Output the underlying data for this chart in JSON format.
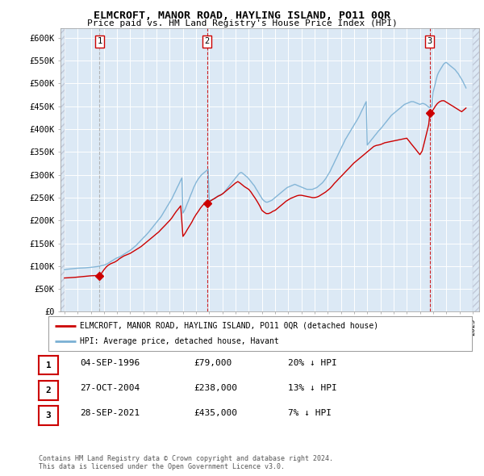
{
  "title": "ELMCROFT, MANOR ROAD, HAYLING ISLAND, PO11 0QR",
  "subtitle": "Price paid vs. HM Land Registry's House Price Index (HPI)",
  "background_color": "#ffffff",
  "plot_bg_color": "#dce9f5",
  "grid_color": "#ffffff",
  "ylim": [
    0,
    620000
  ],
  "yticks": [
    0,
    50000,
    100000,
    150000,
    200000,
    250000,
    300000,
    350000,
    400000,
    450000,
    500000,
    550000,
    600000
  ],
  "xlim_start": 1993.7,
  "xlim_end": 2025.5,
  "sale_dates": [
    1996.67,
    2004.83,
    2021.74
  ],
  "sale_prices": [
    79000,
    238000,
    435000
  ],
  "sale_labels": [
    "1",
    "2",
    "3"
  ],
  "legend_line_label": "ELMCROFT, MANOR ROAD, HAYLING ISLAND, PO11 0QR (detached house)",
  "legend_hpi_label": "HPI: Average price, detached house, Havant",
  "table_rows": [
    [
      "1",
      "04-SEP-1996",
      "£79,000",
      "20% ↓ HPI"
    ],
    [
      "2",
      "27-OCT-2004",
      "£238,000",
      "13% ↓ HPI"
    ],
    [
      "3",
      "28-SEP-2021",
      "£435,000",
      "7% ↓ HPI"
    ]
  ],
  "footnote": "Contains HM Land Registry data © Crown copyright and database right 2024.\nThis data is licensed under the Open Government Licence v3.0.",
  "line_color": "#cc0000",
  "hpi_color": "#7ab0d4",
  "vline1_color": "#aaaaaa",
  "vline2_color": "#cc0000",
  "hpi_data_years": [
    1994.0,
    1994.08,
    1994.17,
    1994.25,
    1994.33,
    1994.42,
    1994.5,
    1994.58,
    1994.67,
    1994.75,
    1994.83,
    1994.92,
    1995.0,
    1995.08,
    1995.17,
    1995.25,
    1995.33,
    1995.42,
    1995.5,
    1995.58,
    1995.67,
    1995.75,
    1995.83,
    1995.92,
    1996.0,
    1996.08,
    1996.17,
    1996.25,
    1996.33,
    1996.42,
    1996.5,
    1996.58,
    1996.67,
    1996.75,
    1996.83,
    1996.92,
    1997.0,
    1997.08,
    1997.17,
    1997.25,
    1997.33,
    1997.42,
    1997.5,
    1997.58,
    1997.67,
    1997.75,
    1997.83,
    1997.92,
    1998.0,
    1998.08,
    1998.17,
    1998.25,
    1998.33,
    1998.42,
    1998.5,
    1998.58,
    1998.67,
    1998.75,
    1998.83,
    1998.92,
    1999.0,
    1999.08,
    1999.17,
    1999.25,
    1999.33,
    1999.42,
    1999.5,
    1999.58,
    1999.67,
    1999.75,
    1999.83,
    1999.92,
    2000.0,
    2000.08,
    2000.17,
    2000.25,
    2000.33,
    2000.42,
    2000.5,
    2000.58,
    2000.67,
    2000.75,
    2000.83,
    2000.92,
    2001.0,
    2001.08,
    2001.17,
    2001.25,
    2001.33,
    2001.42,
    2001.5,
    2001.58,
    2001.67,
    2001.75,
    2001.83,
    2001.92,
    2002.0,
    2002.08,
    2002.17,
    2002.25,
    2002.33,
    2002.42,
    2002.5,
    2002.58,
    2002.67,
    2002.75,
    2002.83,
    2002.92,
    2003.0,
    2003.08,
    2003.17,
    2003.25,
    2003.33,
    2003.42,
    2003.5,
    2003.58,
    2003.67,
    2003.75,
    2003.83,
    2003.92,
    2004.0,
    2004.08,
    2004.17,
    2004.25,
    2004.33,
    2004.42,
    2004.5,
    2004.58,
    2004.67,
    2004.75,
    2004.83,
    2004.92,
    2005.0,
    2005.08,
    2005.17,
    2005.25,
    2005.33,
    2005.42,
    2005.5,
    2005.58,
    2005.67,
    2005.75,
    2005.83,
    2005.92,
    2006.0,
    2006.08,
    2006.17,
    2006.25,
    2006.33,
    2006.42,
    2006.5,
    2006.58,
    2006.67,
    2006.75,
    2006.83,
    2006.92,
    2007.0,
    2007.08,
    2007.17,
    2007.25,
    2007.33,
    2007.42,
    2007.5,
    2007.58,
    2007.67,
    2007.75,
    2007.83,
    2007.92,
    2008.0,
    2008.08,
    2008.17,
    2008.25,
    2008.33,
    2008.42,
    2008.5,
    2008.58,
    2008.67,
    2008.75,
    2008.83,
    2008.92,
    2009.0,
    2009.08,
    2009.17,
    2009.25,
    2009.33,
    2009.42,
    2009.5,
    2009.58,
    2009.67,
    2009.75,
    2009.83,
    2009.92,
    2010.0,
    2010.08,
    2010.17,
    2010.25,
    2010.33,
    2010.42,
    2010.5,
    2010.58,
    2010.67,
    2010.75,
    2010.83,
    2010.92,
    2011.0,
    2011.08,
    2011.17,
    2011.25,
    2011.33,
    2011.42,
    2011.5,
    2011.58,
    2011.67,
    2011.75,
    2011.83,
    2011.92,
    2012.0,
    2012.08,
    2012.17,
    2012.25,
    2012.33,
    2012.42,
    2012.5,
    2012.58,
    2012.67,
    2012.75,
    2012.83,
    2012.92,
    2013.0,
    2013.08,
    2013.17,
    2013.25,
    2013.33,
    2013.42,
    2013.5,
    2013.58,
    2013.67,
    2013.75,
    2013.83,
    2013.92,
    2014.0,
    2014.08,
    2014.17,
    2014.25,
    2014.33,
    2014.42,
    2014.5,
    2014.58,
    2014.67,
    2014.75,
    2014.83,
    2014.92,
    2015.0,
    2015.08,
    2015.17,
    2015.25,
    2015.33,
    2015.42,
    2015.5,
    2015.58,
    2015.67,
    2015.75,
    2015.83,
    2015.92,
    2016.0,
    2016.08,
    2016.17,
    2016.25,
    2016.33,
    2016.42,
    2016.5,
    2016.58,
    2016.67,
    2016.75,
    2016.83,
    2016.92,
    2017.0,
    2017.08,
    2017.17,
    2017.25,
    2017.33,
    2017.42,
    2017.5,
    2017.58,
    2017.67,
    2017.75,
    2017.83,
    2017.92,
    2018.0,
    2018.08,
    2018.17,
    2018.25,
    2018.33,
    2018.42,
    2018.5,
    2018.58,
    2018.67,
    2018.75,
    2018.83,
    2018.92,
    2019.0,
    2019.08,
    2019.17,
    2019.25,
    2019.33,
    2019.42,
    2019.5,
    2019.58,
    2019.67,
    2019.75,
    2019.83,
    2019.92,
    2020.0,
    2020.08,
    2020.17,
    2020.25,
    2020.33,
    2020.42,
    2020.5,
    2020.58,
    2020.67,
    2020.75,
    2020.83,
    2020.92,
    2021.0,
    2021.08,
    2021.17,
    2021.25,
    2021.33,
    2021.42,
    2021.5,
    2021.58,
    2021.67,
    2021.75,
    2021.83,
    2021.92,
    2022.0,
    2022.08,
    2022.17,
    2022.25,
    2022.33,
    2022.42,
    2022.5,
    2022.58,
    2022.67,
    2022.75,
    2022.83,
    2022.92,
    2023.0,
    2023.08,
    2023.17,
    2023.25,
    2023.33,
    2023.42,
    2023.5,
    2023.58,
    2023.67,
    2023.75,
    2023.83,
    2023.92,
    2024.0,
    2024.08,
    2024.17,
    2024.25,
    2024.33,
    2024.42,
    2024.5
  ],
  "hpi_data_values": [
    92000,
    92500,
    93000,
    93200,
    93500,
    93800,
    94000,
    94200,
    94500,
    94800,
    95000,
    95200,
    95400,
    95500,
    95600,
    95700,
    95800,
    95900,
    96000,
    96200,
    96400,
    96600,
    96800,
    97000,
    97200,
    97500,
    97800,
    98100,
    98400,
    98700,
    99000,
    99500,
    100000,
    100500,
    101000,
    101500,
    102000,
    103000,
    104000,
    105000,
    106500,
    108000,
    109500,
    111000,
    112500,
    114000,
    115500,
    117000,
    118000,
    119000,
    120000,
    121000,
    122500,
    124000,
    125500,
    127000,
    128500,
    130000,
    131500,
    133000,
    134500,
    136500,
    138500,
    140500,
    142500,
    144500,
    147000,
    149500,
    152000,
    154500,
    157000,
    159500,
    162000,
    164500,
    167000,
    169500,
    172000,
    175000,
    178000,
    181000,
    184000,
    187000,
    190000,
    193000,
    196000,
    199000,
    202000,
    205000,
    208000,
    212000,
    216000,
    220000,
    224000,
    228000,
    232000,
    236000,
    240000,
    244000,
    248000,
    253000,
    258000,
    263000,
    268000,
    273000,
    278000,
    283000,
    288000,
    293000,
    216000,
    220000,
    225000,
    231000,
    237000,
    243000,
    249000,
    255000,
    261000,
    267000,
    273000,
    278000,
    283000,
    287000,
    291000,
    294000,
    297000,
    300000,
    302000,
    304000,
    306000,
    308000,
    310000,
    312000,
    243000,
    244000,
    245000,
    246000,
    247000,
    248000,
    250000,
    252000,
    254000,
    255000,
    256000,
    257000,
    258000,
    260000,
    263000,
    266000,
    269000,
    272000,
    275000,
    278000,
    281000,
    284000,
    287000,
    290000,
    293000,
    296000,
    299000,
    302000,
    304000,
    305000,
    304000,
    302000,
    300000,
    298000,
    296000,
    294000,
    291000,
    288000,
    285000,
    282000,
    279000,
    276000,
    272000,
    268000,
    264000,
    260000,
    256000,
    252000,
    248000,
    245000,
    243000,
    241000,
    240000,
    240000,
    241000,
    242000,
    243000,
    244000,
    246000,
    248000,
    250000,
    252000,
    254000,
    256000,
    258000,
    260000,
    262000,
    264000,
    266000,
    268000,
    270000,
    272000,
    273000,
    274000,
    275000,
    276000,
    277000,
    278000,
    279000,
    278000,
    277000,
    276000,
    275000,
    274000,
    273000,
    272000,
    271000,
    270000,
    269000,
    268000,
    268000,
    268000,
    268000,
    268000,
    268000,
    269000,
    270000,
    271000,
    272000,
    274000,
    276000,
    278000,
    280000,
    282000,
    285000,
    288000,
    291000,
    295000,
    299000,
    303000,
    307000,
    312000,
    317000,
    322000,
    327000,
    332000,
    337000,
    342000,
    347000,
    352000,
    357000,
    362000,
    367000,
    372000,
    377000,
    381000,
    385000,
    389000,
    393000,
    397000,
    401000,
    405000,
    409000,
    413000,
    417000,
    421000,
    425000,
    430000,
    435000,
    440000,
    445000,
    450000,
    455000,
    460000,
    365000,
    368000,
    371000,
    374000,
    377000,
    380000,
    383000,
    386000,
    389000,
    392000,
    395000,
    398000,
    400000,
    403000,
    406000,
    409000,
    412000,
    415000,
    418000,
    421000,
    424000,
    427000,
    430000,
    432000,
    434000,
    436000,
    438000,
    440000,
    442000,
    444000,
    446000,
    448000,
    450000,
    452000,
    454000,
    455000,
    456000,
    457000,
    458000,
    459000,
    460000,
    460000,
    460000,
    459000,
    458000,
    457000,
    456000,
    455000,
    454000,
    455000,
    456000,
    456000,
    455000,
    454000,
    452000,
    450000,
    448000,
    447000,
    448000,
    450000,
    480000,
    490000,
    500000,
    510000,
    518000,
    524000,
    528000,
    532000,
    536000,
    540000,
    543000,
    545000,
    546000,
    544000,
    542000,
    540000,
    538000,
    536000,
    534000,
    532000,
    530000,
    527000,
    524000,
    521000,
    517000,
    513000,
    509000,
    505000,
    500000,
    495000,
    490000,
    485000,
    481000,
    478000,
    475000,
    473000,
    471000,
    469000,
    467000,
    465000,
    464000,
    463000,
    462000,
    461000,
    460000,
    459000,
    458000
  ],
  "price_data_years": [
    1994.0,
    1994.17,
    1994.33,
    1994.5,
    1994.67,
    1994.83,
    1995.0,
    1995.17,
    1995.33,
    1995.5,
    1995.67,
    1995.83,
    1996.0,
    1996.17,
    1996.33,
    1996.5,
    1996.67,
    1996.67,
    1996.83,
    1997.0,
    1997.17,
    1997.33,
    1997.5,
    1997.67,
    1997.83,
    1998.0,
    1998.17,
    1998.33,
    1998.5,
    1998.67,
    1998.83,
    1999.0,
    1999.17,
    1999.33,
    1999.5,
    1999.67,
    1999.83,
    2000.0,
    2000.17,
    2000.33,
    2000.5,
    2000.67,
    2000.83,
    2001.0,
    2001.17,
    2001.33,
    2001.5,
    2001.67,
    2001.83,
    2002.0,
    2002.17,
    2002.33,
    2002.5,
    2002.67,
    2002.83,
    2003.0,
    2003.17,
    2003.33,
    2003.5,
    2003.67,
    2003.83,
    2004.0,
    2004.17,
    2004.33,
    2004.5,
    2004.67,
    2004.83,
    2004.83,
    2005.0,
    2005.17,
    2005.33,
    2005.5,
    2005.67,
    2005.83,
    2006.0,
    2006.17,
    2006.33,
    2006.5,
    2006.67,
    2006.83,
    2007.0,
    2007.17,
    2007.33,
    2007.5,
    2007.67,
    2007.83,
    2008.0,
    2008.17,
    2008.33,
    2008.5,
    2008.67,
    2008.83,
    2009.0,
    2009.17,
    2009.33,
    2009.5,
    2009.67,
    2009.83,
    2010.0,
    2010.17,
    2010.33,
    2010.5,
    2010.67,
    2010.83,
    2011.0,
    2011.17,
    2011.33,
    2011.5,
    2011.67,
    2011.83,
    2012.0,
    2012.17,
    2012.33,
    2012.5,
    2012.67,
    2012.83,
    2013.0,
    2013.17,
    2013.33,
    2013.5,
    2013.67,
    2013.83,
    2014.0,
    2014.17,
    2014.33,
    2014.5,
    2014.67,
    2014.83,
    2015.0,
    2015.17,
    2015.33,
    2015.5,
    2015.67,
    2015.83,
    2016.0,
    2016.17,
    2016.33,
    2016.5,
    2016.67,
    2016.83,
    2017.0,
    2017.17,
    2017.33,
    2017.5,
    2017.67,
    2017.83,
    2018.0,
    2018.17,
    2018.33,
    2018.5,
    2018.67,
    2018.83,
    2019.0,
    2019.17,
    2019.33,
    2019.5,
    2019.67,
    2019.83,
    2020.0,
    2020.17,
    2020.33,
    2020.5,
    2020.67,
    2020.83,
    2021.0,
    2021.17,
    2021.33,
    2021.5,
    2021.67,
    2021.74,
    2021.74,
    2021.83,
    2022.0,
    2022.17,
    2022.33,
    2022.5,
    2022.67,
    2022.83,
    2023.0,
    2023.17,
    2023.33,
    2023.5,
    2023.67,
    2023.83,
    2024.0,
    2024.17,
    2024.33,
    2024.5
  ],
  "price_data_values": [
    74000,
    74200,
    74500,
    74800,
    75000,
    75500,
    76000,
    76500,
    77000,
    77500,
    78000,
    78500,
    78800,
    79000,
    79200,
    79400,
    79000,
    79000,
    85000,
    92000,
    98000,
    102000,
    105000,
    107000,
    109000,
    112000,
    116000,
    119000,
    122000,
    124000,
    126000,
    128000,
    131000,
    134000,
    137000,
    140000,
    143000,
    147000,
    151000,
    155000,
    159000,
    163000,
    167000,
    171000,
    175000,
    180000,
    185000,
    190000,
    195000,
    200000,
    206000,
    213000,
    220000,
    226000,
    232000,
    165000,
    172000,
    180000,
    188000,
    196000,
    205000,
    213000,
    220000,
    227000,
    233000,
    238000,
    238000,
    238000,
    241000,
    244000,
    247000,
    250000,
    253000,
    255000,
    258000,
    262000,
    266000,
    270000,
    274000,
    278000,
    282000,
    285000,
    282000,
    278000,
    274000,
    271000,
    268000,
    262000,
    255000,
    248000,
    240000,
    232000,
    222000,
    218000,
    215000,
    215000,
    217000,
    220000,
    222000,
    226000,
    230000,
    234000,
    238000,
    242000,
    245000,
    248000,
    250000,
    252000,
    254000,
    255000,
    255000,
    254000,
    253000,
    252000,
    251000,
    250000,
    250000,
    251000,
    253000,
    256000,
    259000,
    262000,
    266000,
    270000,
    275000,
    281000,
    286000,
    291000,
    296000,
    301000,
    306000,
    311000,
    316000,
    321000,
    326000,
    330000,
    334000,
    338000,
    342000,
    346000,
    350000,
    354000,
    358000,
    362000,
    364000,
    365000,
    366000,
    368000,
    370000,
    371000,
    372000,
    373000,
    374000,
    375000,
    376000,
    377000,
    378000,
    379000,
    380000,
    374000,
    368000,
    362000,
    356000,
    350000,
    344000,
    352000,
    370000,
    390000,
    410000,
    430000,
    435000,
    435000,
    442000,
    450000,
    456000,
    460000,
    462000,
    462000,
    459000,
    456000,
    453000,
    450000,
    447000,
    444000,
    441000,
    438000,
    442000,
    446000,
    450000
  ]
}
